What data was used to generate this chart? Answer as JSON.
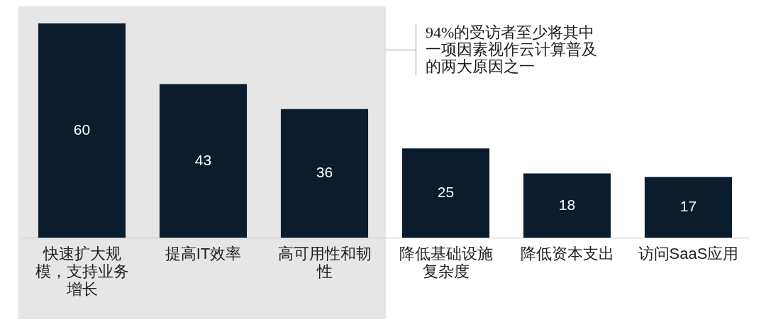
{
  "chart_data": {
    "type": "bar",
    "categories": [
      "快速扩大规模，支持业务增长",
      "提高IT效率",
      "高可用性和韧性",
      "降低基础设施复杂度",
      "降低资本支出",
      "访问SaaS应用"
    ],
    "values": [
      60,
      43,
      36,
      25,
      18,
      17
    ],
    "color": "#0b1d2c",
    "ylim": [
      0,
      60
    ],
    "data_labels": true,
    "grid": false,
    "legend": false,
    "tick_labels": "x",
    "bands": [
      {
        "axis": "x",
        "from": "快速扩大规模，支持业务增长",
        "to": "高可用性和韧性",
        "color": "#e6e6e6",
        "label": "94%的受访者至少将其中一项因素视作云计算普及的两大原因之一"
      }
    ]
  }
}
